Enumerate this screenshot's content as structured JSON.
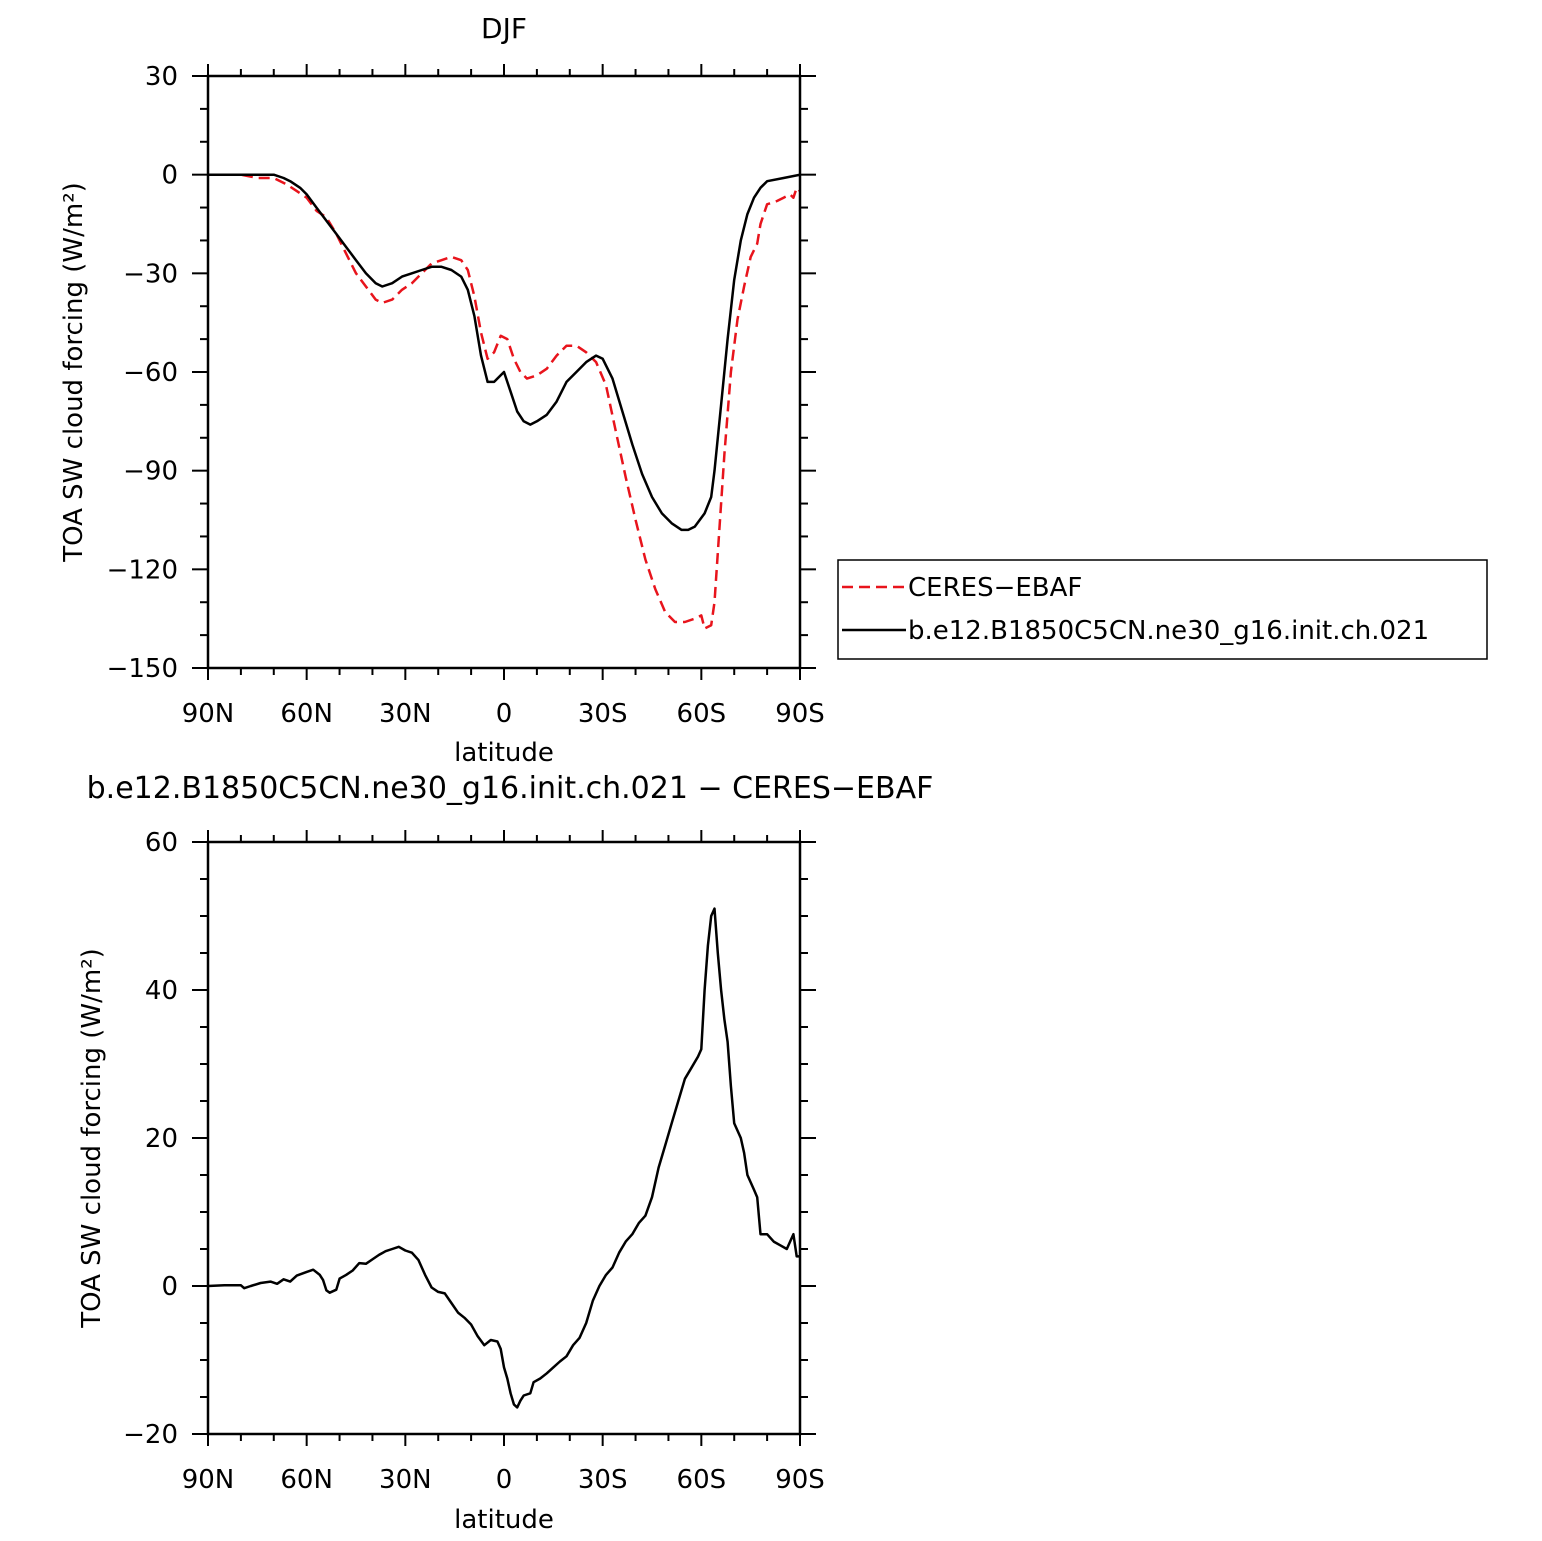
{
  "chart_data": [
    {
      "type": "line",
      "title": "DJF",
      "xlabel": "latitude",
      "ylabel": "TOA SW cloud forcing (W/m²)",
      "xlim": [
        90,
        -90
      ],
      "ylim": [
        -150,
        30
      ],
      "x_ticks": [
        90,
        60,
        30,
        0,
        -30,
        -60,
        -90
      ],
      "x_tick_labels": [
        "90N",
        "60N",
        "30N",
        "0",
        "30S",
        "60S",
        "90S"
      ],
      "y_ticks": [
        30,
        0,
        -30,
        -60,
        -90,
        -120,
        -150
      ],
      "y_tick_labels": [
        "30",
        "0",
        "−30",
        "−60",
        "−90",
        "−120",
        "−150"
      ],
      "legend_position": "right",
      "series": [
        {
          "name": "CERES−EBAF",
          "color": "#e8141c",
          "style": "dashed",
          "points": [
            [
              90,
              0
            ],
            [
              85,
              0
            ],
            [
              80,
              0
            ],
            [
              75,
              -1
            ],
            [
              70,
              -1
            ],
            [
              66,
              -3
            ],
            [
              63,
              -5
            ],
            [
              60,
              -7
            ],
            [
              57,
              -11
            ],
            [
              54,
              -13
            ],
            [
              51,
              -18
            ],
            [
              48,
              -24
            ],
            [
              45,
              -30
            ],
            [
              42,
              -34
            ],
            [
              39,
              -38
            ],
            [
              37,
              -39
            ],
            [
              34,
              -38
            ],
            [
              31,
              -35
            ],
            [
              28,
              -33
            ],
            [
              25,
              -30
            ],
            [
              22,
              -27
            ],
            [
              19,
              -26
            ],
            [
              16,
              -25
            ],
            [
              13,
              -26
            ],
            [
              11,
              -29
            ],
            [
              9,
              -37
            ],
            [
              7,
              -48
            ],
            [
              5,
              -56
            ],
            [
              3,
              -54
            ],
            [
              1,
              -49
            ],
            [
              -1,
              -50
            ],
            [
              -3,
              -56
            ],
            [
              -5,
              -60
            ],
            [
              -7,
              -62
            ],
            [
              -10,
              -61
            ],
            [
              -13,
              -59
            ],
            [
              -16,
              -55
            ],
            [
              -19,
              -52
            ],
            [
              -22,
              -52
            ],
            [
              -25,
              -54
            ],
            [
              -28,
              -57
            ],
            [
              -31,
              -64
            ],
            [
              -34,
              -78
            ],
            [
              -37,
              -92
            ],
            [
              -40,
              -105
            ],
            [
              -43,
              -117
            ],
            [
              -46,
              -126
            ],
            [
              -49,
              -133
            ],
            [
              -52,
              -136
            ],
            [
              -55,
              -136
            ],
            [
              -58,
              -135
            ],
            [
              -60,
              -134
            ],
            [
              -61,
              -138
            ],
            [
              -63,
              -137
            ],
            [
              -64,
              -130
            ],
            [
              -65,
              -115
            ],
            [
              -67,
              -85
            ],
            [
              -69,
              -60
            ],
            [
              -71,
              -44
            ],
            [
              -73,
              -34
            ],
            [
              -75,
              -25
            ],
            [
              -77,
              -21
            ],
            [
              -78,
              -15
            ],
            [
              -80,
              -9
            ],
            [
              -83,
              -8
            ],
            [
              -85,
              -7
            ],
            [
              -87,
              -6
            ],
            [
              -88,
              -7
            ],
            [
              -89,
              -4
            ],
            [
              -90,
              -5
            ]
          ]
        },
        {
          "name": "b.e12.B1850C5CN.ne30_g16.init.ch.021",
          "color": "#000000",
          "style": "solid",
          "points": [
            [
              90,
              0
            ],
            [
              85,
              0
            ],
            [
              80,
              0
            ],
            [
              75,
              0
            ],
            [
              70,
              0
            ],
            [
              67,
              -1
            ],
            [
              65,
              -2
            ],
            [
              62,
              -4
            ],
            [
              60,
              -6
            ],
            [
              57,
              -10
            ],
            [
              54,
              -14
            ],
            [
              51,
              -18
            ],
            [
              48,
              -22
            ],
            [
              45,
              -26
            ],
            [
              42,
              -30
            ],
            [
              39,
              -33
            ],
            [
              37,
              -34
            ],
            [
              34,
              -33
            ],
            [
              31,
              -31
            ],
            [
              28,
              -30
            ],
            [
              25,
              -29
            ],
            [
              22,
              -28
            ],
            [
              19,
              -28
            ],
            [
              16,
              -29
            ],
            [
              13,
              -31
            ],
            [
              11,
              -35
            ],
            [
              9,
              -43
            ],
            [
              7,
              -55
            ],
            [
              5,
              -63
            ],
            [
              3,
              -63
            ],
            [
              1,
              -61
            ],
            [
              0,
              -60
            ],
            [
              -2,
              -66
            ],
            [
              -4,
              -72
            ],
            [
              -6,
              -75
            ],
            [
              -8,
              -76
            ],
            [
              -10,
              -75
            ],
            [
              -13,
              -73
            ],
            [
              -16,
              -69
            ],
            [
              -19,
              -63
            ],
            [
              -22,
              -60
            ],
            [
              -25,
              -57
            ],
            [
              -28,
              -55
            ],
            [
              -30,
              -56
            ],
            [
              -33,
              -62
            ],
            [
              -36,
              -72
            ],
            [
              -39,
              -82
            ],
            [
              -42,
              -91
            ],
            [
              -45,
              -98
            ],
            [
              -48,
              -103
            ],
            [
              -51,
              -106
            ],
            [
              -54,
              -108
            ],
            [
              -56,
              -108
            ],
            [
              -58,
              -107
            ],
            [
              -61,
              -103
            ],
            [
              -63,
              -98
            ],
            [
              -64,
              -90
            ],
            [
              -66,
              -70
            ],
            [
              -68,
              -50
            ],
            [
              -70,
              -32
            ],
            [
              -72,
              -20
            ],
            [
              -74,
              -12
            ],
            [
              -76,
              -7
            ],
            [
              -78,
              -4
            ],
            [
              -80,
              -2
            ],
            [
              -85,
              -1
            ],
            [
              -90,
              0
            ]
          ]
        }
      ]
    },
    {
      "type": "line",
      "title": "b.e12.B1850C5CN.ne30_g16.init.ch.021 − CERES−EBAF",
      "xlabel": "latitude",
      "ylabel": "TOA SW cloud forcing (W/m²)",
      "xlim": [
        90,
        -90
      ],
      "ylim": [
        -20,
        60
      ],
      "x_ticks": [
        90,
        60,
        30,
        0,
        -30,
        -60,
        -90
      ],
      "x_tick_labels": [
        "90N",
        "60N",
        "30N",
        "0",
        "30S",
        "60S",
        "90S"
      ],
      "y_ticks": [
        60,
        40,
        20,
        0,
        -20
      ],
      "y_tick_labels": [
        "60",
        "40",
        "20",
        "0",
        "−20"
      ],
      "series": [
        {
          "color": "#000000",
          "style": "solid",
          "points": [
            [
              90,
              0
            ],
            [
              85,
              0.1
            ],
            [
              80,
              0.1
            ],
            [
              79,
              -0.3
            ],
            [
              77,
              0
            ],
            [
              74,
              0.4
            ],
            [
              71,
              0.6
            ],
            [
              69,
              0.3
            ],
            [
              67,
              0.9
            ],
            [
              65,
              0.6
            ],
            [
              63,
              1.4
            ],
            [
              60,
              1.9
            ],
            [
              58,
              2.2
            ],
            [
              56,
              1.5
            ],
            [
              55,
              0.8
            ],
            [
              54,
              -0.6
            ],
            [
              53,
              -0.9
            ],
            [
              51,
              -0.5
            ],
            [
              50,
              1
            ],
            [
              48,
              1.5
            ],
            [
              46,
              2.1
            ],
            [
              44,
              3.1
            ],
            [
              42,
              3
            ],
            [
              40,
              3.6
            ],
            [
              38,
              4.2
            ],
            [
              36,
              4.7
            ],
            [
              34,
              5
            ],
            [
              32,
              5.3
            ],
            [
              30,
              4.8
            ],
            [
              28,
              4.5
            ],
            [
              26,
              3.5
            ],
            [
              24,
              1.5
            ],
            [
              22,
              -0.2
            ],
            [
              20,
              -0.8
            ],
            [
              18,
              -1
            ],
            [
              16,
              -2.3
            ],
            [
              14,
              -3.6
            ],
            [
              12,
              -4.3
            ],
            [
              10,
              -5.2
            ],
            [
              8,
              -6.8
            ],
            [
              6,
              -8
            ],
            [
              4,
              -7.3
            ],
            [
              2,
              -7.5
            ],
            [
              1,
              -8.5
            ],
            [
              0,
              -11
            ],
            [
              -1,
              -12.5
            ],
            [
              -2,
              -14.5
            ],
            [
              -3,
              -16
            ],
            [
              -4,
              -16.4
            ],
            [
              -5,
              -15.5
            ],
            [
              -6,
              -14.8
            ],
            [
              -8,
              -14.5
            ],
            [
              -9,
              -13
            ],
            [
              -11,
              -12.5
            ],
            [
              -13,
              -11.8
            ],
            [
              -15,
              -11
            ],
            [
              -17,
              -10.2
            ],
            [
              -19,
              -9.5
            ],
            [
              -21,
              -8
            ],
            [
              -23,
              -7
            ],
            [
              -25,
              -5
            ],
            [
              -27,
              -2
            ],
            [
              -29,
              0
            ],
            [
              -31,
              1.5
            ],
            [
              -33,
              2.5
            ],
            [
              -35,
              4.5
            ],
            [
              -37,
              6
            ],
            [
              -39,
              7
            ],
            [
              -41,
              8.5
            ],
            [
              -43,
              9.5
            ],
            [
              -45,
              12
            ],
            [
              -47,
              16
            ],
            [
              -49,
              19
            ],
            [
              -51,
              22
            ],
            [
              -53,
              25
            ],
            [
              -55,
              28
            ],
            [
              -57,
              29.5
            ],
            [
              -59,
              31
            ],
            [
              -60,
              32
            ],
            [
              -61,
              40
            ],
            [
              -62,
              46
            ],
            [
              -63,
              50
            ],
            [
              -64,
              51
            ],
            [
              -65,
              45
            ],
            [
              -66,
              40
            ],
            [
              -67,
              36
            ],
            [
              -68,
              33
            ],
            [
              -69,
              27
            ],
            [
              -70,
              22
            ],
            [
              -72,
              20
            ],
            [
              -73,
              18
            ],
            [
              -74,
              15
            ],
            [
              -76,
              13
            ],
            [
              -77,
              12
            ],
            [
              -78,
              7
            ],
            [
              -80,
              7
            ],
            [
              -82,
              6
            ],
            [
              -84,
              5.5
            ],
            [
              -86,
              5
            ],
            [
              -88,
              7
            ],
            [
              -89,
              4
            ],
            [
              -90,
              4
            ]
          ]
        }
      ]
    }
  ]
}
